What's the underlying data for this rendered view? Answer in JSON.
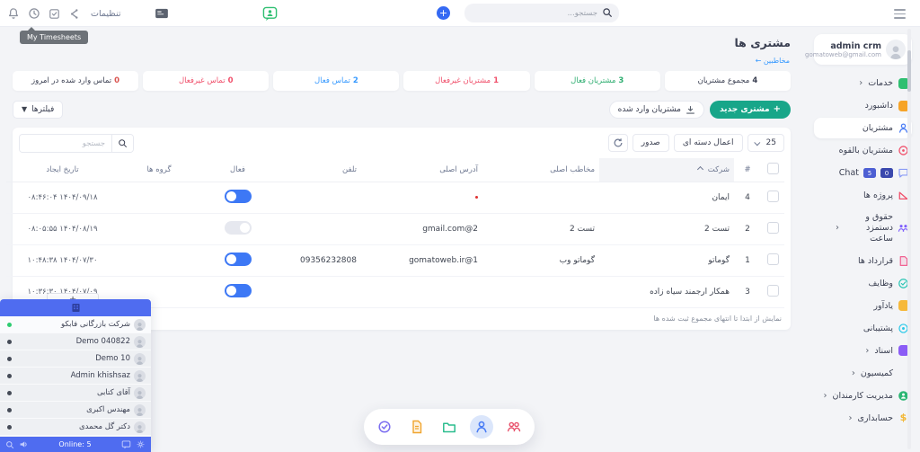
{
  "topbar": {
    "settings": "تنظیمات",
    "search_placeholder": "جستجو...",
    "tooltip": "My Timesheets"
  },
  "page": {
    "title": "مشتری ها",
    "breadcrumb": "مخاطبین ←"
  },
  "sidebar": {
    "user": {
      "name": "admin crm",
      "email": "gomatoweb@gmail.com"
    },
    "items": [
      {
        "label": "خدمات",
        "icon": "services-icon",
        "kind": "sq",
        "color": "#2fbf71",
        "chevron": true
      },
      {
        "label": "داشبورد",
        "icon": "dashboard-icon",
        "kind": "sq",
        "color": "#f6a428"
      },
      {
        "label": "مشتریان",
        "icon": "customers-icon",
        "kind": "person",
        "color": "#4a7df5",
        "active": true
      },
      {
        "label": "مشتریان بالقوه",
        "icon": "leads-icon",
        "kind": "target",
        "color": "#f0506b"
      },
      {
        "label": "Chat",
        "icon": "chat-icon",
        "kind": "bubble",
        "color": "#8a9bf5",
        "badges": [
          {
            "value": "0",
            "color": "#3a48ad"
          },
          {
            "value": "5",
            "color": "#4d5fd3"
          }
        ]
      },
      {
        "label": "پروژه ها",
        "icon": "projects-icon",
        "kind": "proj",
        "color": "#f0506b"
      },
      {
        "label": "حقوق و دستمزد ساعت",
        "icon": "payroll-icon",
        "kind": "group",
        "color": "#7c5cfc",
        "chevron": true,
        "wrap": true
      },
      {
        "label": "قرارداد ها",
        "icon": "contracts-icon",
        "kind": "doc",
        "color": "#f06292"
      },
      {
        "label": "وظایف",
        "icon": "tasks-icon",
        "kind": "check",
        "color": "#2bc5b4"
      },
      {
        "label": "یادآور",
        "icon": "reminder-icon",
        "kind": "sq",
        "color": "#f6b93b"
      },
      {
        "label": "پشتیبانی",
        "icon": "support-icon",
        "kind": "headset",
        "color": "#29c8e8"
      },
      {
        "label": "اسناد",
        "icon": "documents-icon",
        "kind": "sq",
        "color": "#8b5cf6",
        "chevron": true
      },
      {
        "label": "کمیسیون",
        "icon": "commission-icon",
        "kind": "none",
        "chevron": true
      },
      {
        "label": "مدیریت کارمندان",
        "icon": "employees-icon",
        "kind": "personfill",
        "color": "#2bb673",
        "chevron": true
      },
      {
        "label": "حسابداری",
        "icon": "accounting-icon",
        "kind": "dollar",
        "color": "#f2b632",
        "chevron": true
      }
    ]
  },
  "stats": [
    {
      "value": "4",
      "label": "مجموع مشتریان",
      "color": "#3a3f51"
    },
    {
      "value": "3",
      "label": "مشتریان فعال",
      "color": "#2fae71"
    },
    {
      "value": "1",
      "label": "مشتریان غیرفعال",
      "color": "#f0506b"
    },
    {
      "value": "2",
      "label": "تماس فعال",
      "color": "#3699ff"
    },
    {
      "value": "0",
      "label": "تماس غیرفعال",
      "color": "#f0506b"
    },
    {
      "value": "0",
      "label": "تماس وارد شده در امروز",
      "color": "#d9534f",
      "label_color": "#3a3f51"
    }
  ],
  "actions": {
    "new_customer": "مشتری جدید",
    "import_customers": "مشتریان وارد شده",
    "filters": "فیلترها"
  },
  "table": {
    "page_size": "25",
    "bulk_action": "اعمال دسته ای",
    "export": "صدور",
    "search_placeholder": "جستجو",
    "columns": [
      "#",
      "شرکت",
      "مخاطب اصلی",
      "آدرس اصلی",
      "تلفن",
      "فعال",
      "گروه ها",
      "تاریخ ایجاد"
    ],
    "rows": [
      {
        "num": "4",
        "company": "ایمان",
        "contact": "",
        "address": "",
        "address_dot": true,
        "phone": "",
        "active": true,
        "groups": "",
        "created": "۱۴۰۴/۰۹/۱۸ ۰۸:۴۶:۰۴"
      },
      {
        "num": "2",
        "company": "تست 2",
        "contact": "تست 2",
        "address": "gmail.com@2",
        "phone": "",
        "active": false,
        "groups": "",
        "created": "۱۴۰۴/۰۸/۱۹ ۰۸:۰۵:۵۵"
      },
      {
        "num": "1",
        "company": "گوماتو",
        "contact": "گوماتو وب",
        "address": "gomatoweb.ir@1",
        "phone": "09356232808",
        "active": true,
        "groups": "",
        "created": "۱۴۰۴/۰۷/۳۰ ۱۰:۴۸:۳۸"
      },
      {
        "num": "3",
        "company": "همکار ارجمند سیاه زاده",
        "contact": "",
        "address": "",
        "phone": "",
        "active": true,
        "groups": "",
        "created": "۱۴۰۴/۰۷/۰۹ ۱۰:۳۶:۳۰"
      }
    ],
    "footer": "نمایش از ابتدا تا انتهای مجموع ثبت شده ها"
  },
  "dock": {
    "items": [
      {
        "icon": "tasks-check-icon",
        "kind": "check",
        "color": "#7c6ef0"
      },
      {
        "icon": "invoice-file-icon",
        "kind": "file",
        "color": "#f0a52e"
      },
      {
        "icon": "files-folder-icon",
        "kind": "folder",
        "color": "#2bbd8e"
      },
      {
        "icon": "customers-person-icon",
        "kind": "person",
        "color": "#4a7df5",
        "active": true
      },
      {
        "icon": "staff-people-icon",
        "kind": "people",
        "color": "#e8506a"
      }
    ]
  },
  "chat": {
    "online_label": "Online: 5",
    "users": [
      {
        "name": "شرکت بازرگانی فابکو",
        "online": true
      },
      {
        "name": "Demo 040822",
        "online": false
      },
      {
        "name": "Demo 10",
        "online": false
      },
      {
        "name": "Admin khishsaz",
        "online": false
      },
      {
        "name": "آقای کتابی",
        "online": false
      },
      {
        "name": "مهندس اکبری",
        "online": false
      },
      {
        "name": "دکتر گل محمدی",
        "online": false
      }
    ]
  },
  "obscured": {
    "label": "+"
  }
}
